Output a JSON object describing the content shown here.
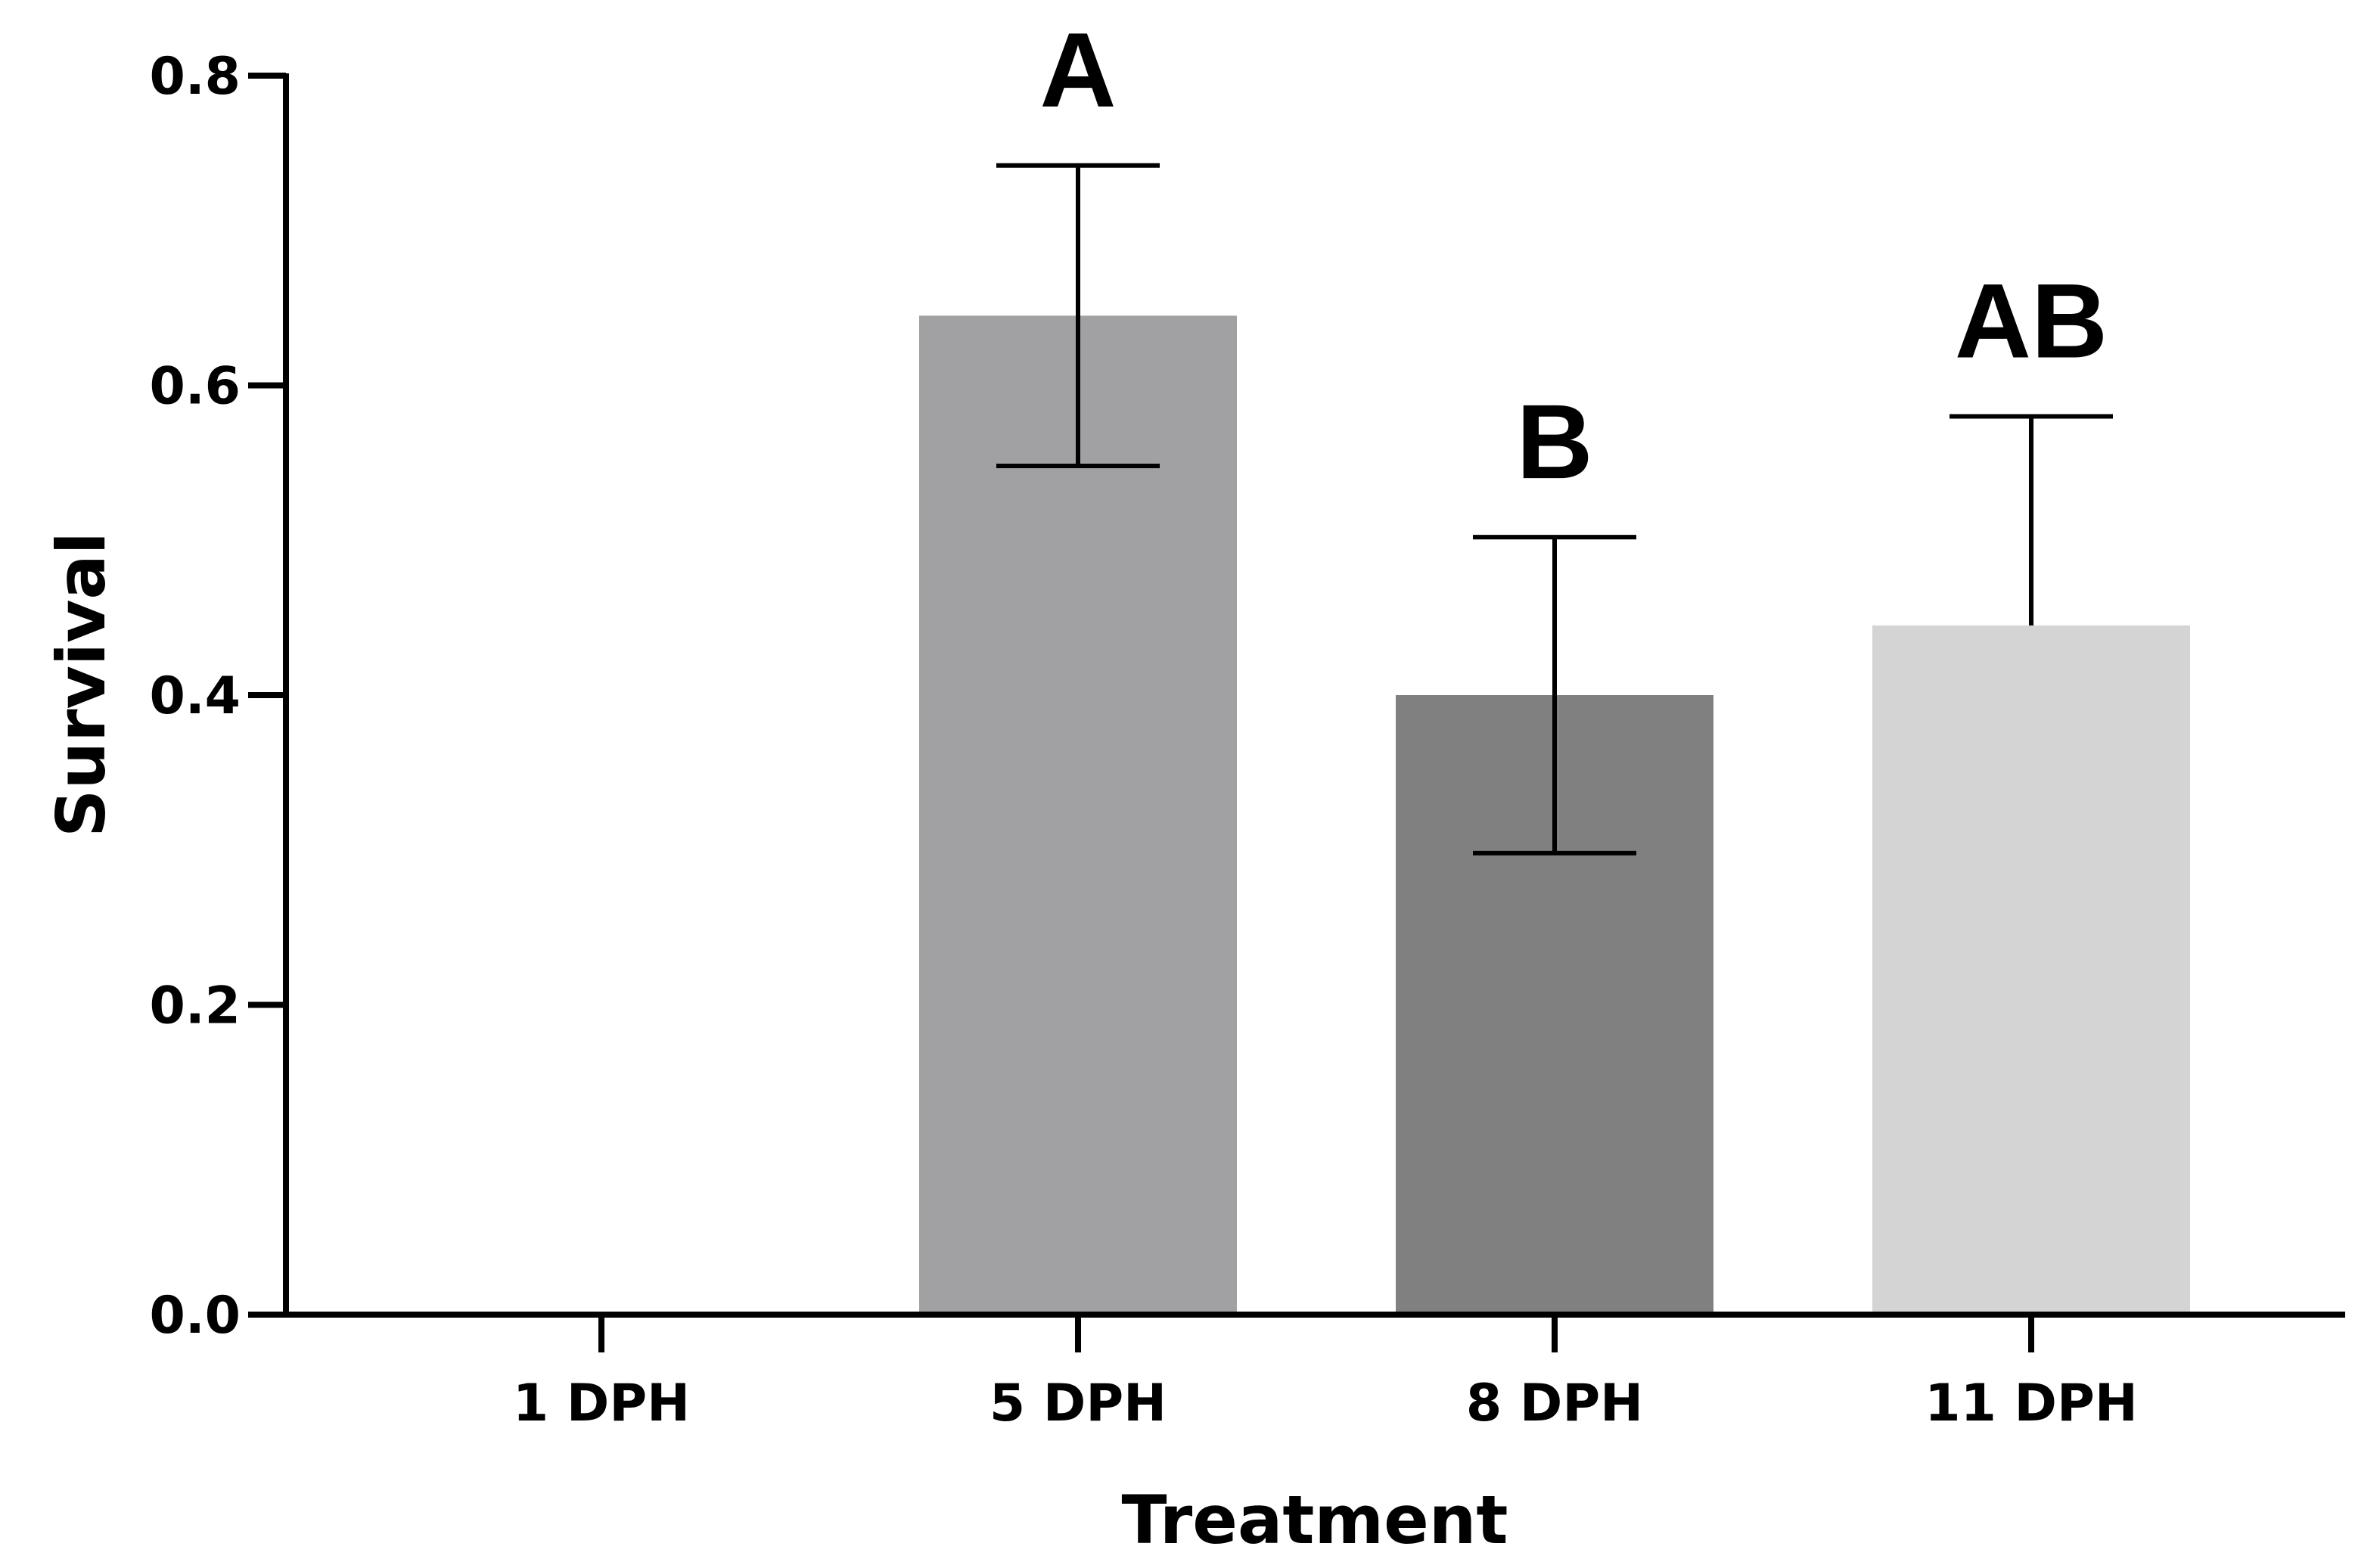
{
  "chart_data": {
    "type": "bar",
    "title": "",
    "xlabel": "Treatment",
    "ylabel": "Survival",
    "categories": [
      "1 DPH",
      "5 DPH",
      "8 DPH",
      "11 DPH"
    ],
    "values": [
      0,
      0.645,
      0.4,
      0.445
    ],
    "error_upper": [
      null,
      0.742,
      0.502,
      0.58
    ],
    "error_lower": [
      null,
      0.548,
      0.298,
      null
    ],
    "significance_letters": [
      "",
      "A",
      "B",
      "AB"
    ],
    "bar_colors": [
      "#ffffff",
      "#a1a1a4",
      "#808080",
      "#d4d4d4"
    ],
    "ylim": [
      0,
      0.8
    ],
    "yticks": [
      0,
      0.2,
      0.4,
      0.6,
      0.8
    ],
    "ytick_labels": [
      "0.0",
      "0.2",
      "0.4",
      "0.6",
      "0.8"
    ],
    "grid": false,
    "legend": null
  }
}
